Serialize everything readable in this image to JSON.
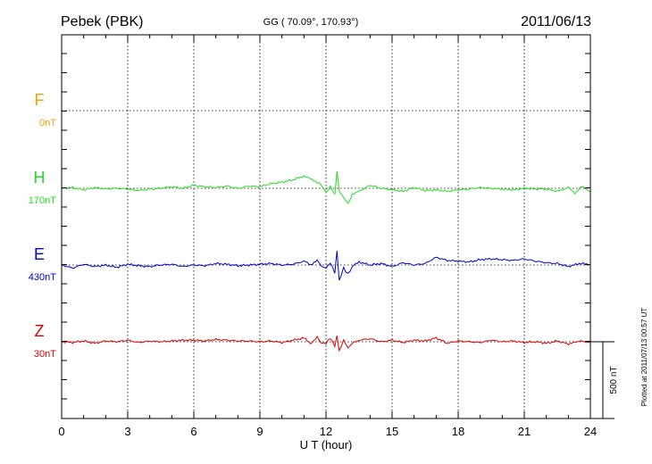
{
  "header": {
    "station": "Pebek (PBK)",
    "coords": "GG ( 70.09°, 170.93°)",
    "date": "2011/06/13"
  },
  "footer_note": "Plotted at 2011/07/13 00:57 UT",
  "scale_label": "500 nT",
  "colors": {
    "F": "#f5a000",
    "H": "#22dd22",
    "E": "#0000cc",
    "Z": "#dd0000",
    "axis": "#000000"
  },
  "chart_data": {
    "type": "line",
    "xlabel": "U T (hour)",
    "xlim": [
      0,
      24
    ],
    "xticks": [
      "0",
      "3",
      "6",
      "9",
      "12",
      "15",
      "18",
      "21",
      "24"
    ],
    "scale_nT": 500,
    "series": [
      {
        "name": "F",
        "offset_label": "0nT",
        "color": "#f5a000",
        "values": []
      },
      {
        "name": "H",
        "offset_label": "170nT",
        "color": "#22dd22",
        "x": [
          0,
          0.5,
          1,
          1.5,
          2,
          2.5,
          3,
          3.5,
          4,
          4.5,
          5,
          5.5,
          6,
          6.5,
          7,
          7.5,
          8,
          8.5,
          9,
          9.5,
          10,
          10.5,
          11,
          11.3,
          11.6,
          11.8,
          12,
          12.2,
          12.4,
          12.5,
          12.6,
          12.8,
          13,
          13.2,
          13.5,
          14,
          14.5,
          15,
          15.5,
          16,
          16.5,
          17,
          17.5,
          18,
          18.5,
          19,
          19.5,
          20,
          20.5,
          21,
          21.5,
          22,
          22.5,
          23,
          23.3,
          23.6,
          24
        ],
        "values": [
          0,
          5,
          -10,
          5,
          -5,
          0,
          -5,
          -15,
          -5,
          0,
          10,
          0,
          20,
          10,
          5,
          15,
          0,
          15,
          10,
          30,
          40,
          55,
          80,
          60,
          40,
          20,
          -30,
          10,
          -40,
          110,
          -20,
          -60,
          -100,
          -40,
          -20,
          20,
          0,
          -10,
          -20,
          5,
          -15,
          -10,
          -20,
          -10,
          -5,
          5,
          0,
          -5,
          -10,
          0,
          -5,
          -5,
          -20,
          5,
          -30,
          10,
          -20
        ]
      },
      {
        "name": "E",
        "offset_label": "430nT",
        "color": "#0000cc",
        "x": [
          0,
          0.5,
          1,
          1.5,
          2,
          2.5,
          3,
          3.5,
          4,
          4.5,
          5,
          5.5,
          6,
          6.5,
          7,
          7.5,
          8,
          8.5,
          9,
          9.5,
          10,
          10.5,
          11,
          11.3,
          11.6,
          11.8,
          12,
          12.2,
          12.4,
          12.5,
          12.6,
          12.8,
          13,
          13.2,
          13.5,
          14,
          14.5,
          15,
          15.5,
          16,
          16.5,
          17,
          17.5,
          18,
          18.5,
          19,
          19.5,
          20,
          20.5,
          21,
          21.5,
          22,
          22.5,
          23,
          23.5,
          24
        ],
        "values": [
          0,
          -20,
          5,
          -10,
          0,
          -15,
          5,
          -5,
          -10,
          0,
          5,
          -10,
          0,
          -5,
          10,
          5,
          -5,
          0,
          5,
          10,
          0,
          5,
          25,
          0,
          35,
          -10,
          -20,
          15,
          -50,
          90,
          -100,
          -20,
          -60,
          -10,
          20,
          0,
          10,
          -10,
          15,
          0,
          10,
          50,
          30,
          25,
          20,
          35,
          40,
          35,
          30,
          40,
          25,
          15,
          10,
          -10,
          10,
          5
        ]
      },
      {
        "name": "Z",
        "offset_label": "30nT",
        "color": "#dd0000",
        "x": [
          0,
          0.5,
          1,
          1.5,
          2,
          2.5,
          3,
          3.5,
          4,
          4.5,
          5,
          5.5,
          6,
          6.5,
          7,
          7.5,
          8,
          8.5,
          9,
          9.5,
          10,
          10.5,
          11,
          11.3,
          11.6,
          11.8,
          12,
          12.2,
          12.4,
          12.5,
          12.6,
          12.8,
          13,
          13.2,
          13.5,
          14,
          14.5,
          15,
          15.5,
          16,
          16.5,
          17,
          17.5,
          18,
          18.5,
          19,
          19.5,
          20,
          20.5,
          21,
          21.5,
          22,
          22.5,
          23,
          23.5,
          24
        ],
        "values": [
          0,
          -5,
          5,
          -10,
          5,
          0,
          10,
          -5,
          5,
          0,
          5,
          10,
          10,
          5,
          15,
          10,
          5,
          5,
          0,
          5,
          -5,
          10,
          25,
          -10,
          30,
          -10,
          -10,
          25,
          -30,
          40,
          -60,
          10,
          -40,
          -10,
          10,
          20,
          0,
          10,
          -5,
          10,
          5,
          25,
          -10,
          5,
          0,
          -5,
          10,
          0,
          5,
          -5,
          0,
          -10,
          5,
          -15,
          5,
          -5
        ]
      }
    ]
  }
}
